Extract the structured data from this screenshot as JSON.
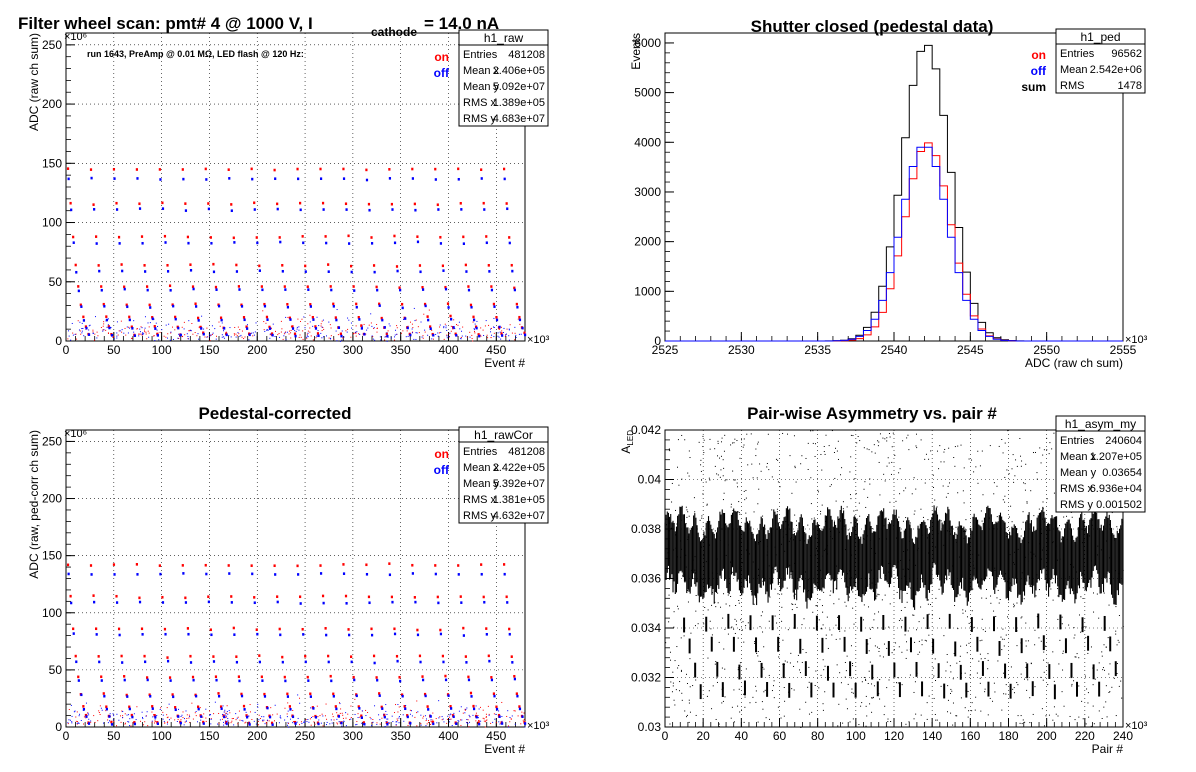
{
  "chart_data": [
    {
      "type": "scatter",
      "title_main": "Filter wheel scan: pmt#   4 @  1000 V, I",
      "title_sub": "cathode",
      "title_tail": "= 14.0 nA",
      "subtitle": "run 1643, PreAmp @ 0.01 MΩ, LED flash @  120 Hz:",
      "xlabel": "Event #",
      "ylabel": "ADC (raw ch sum)",
      "x_exponent": "×10³",
      "y_exponent": "×10⁶",
      "xlim": [
        0,
        480
      ],
      "ylim": [
        0,
        260
      ],
      "xticks": [
        0,
        50,
        100,
        150,
        200,
        250,
        300,
        350,
        400,
        450
      ],
      "yticks": [
        0,
        50,
        100,
        150,
        200,
        250
      ],
      "legend": [
        {
          "label": "on",
          "color": "#ff0000"
        },
        {
          "label": "off",
          "color": "#0000ff"
        }
      ],
      "stats": {
        "name": "h1_raw",
        "rows": [
          [
            "Entries",
            "481208"
          ],
          [
            "Mean x",
            "2.406e+05"
          ],
          [
            "Mean y",
            "5.092e+07"
          ],
          [
            "RMS x",
            "1.389e+05"
          ],
          [
            "RMS y",
            "4.683e+07"
          ]
        ]
      },
      "levels": {
        "on": [
          145,
          116,
          88,
          64,
          46,
          31,
          20,
          12,
          6
        ],
        "off": [
          137,
          111,
          83,
          59,
          43,
          29,
          18,
          11,
          5
        ]
      },
      "cycle_period": 24
    },
    {
      "type": "histogram",
      "title": "Shutter closed (pedestal data)",
      "xlabel": "ADC (raw ch sum)",
      "ylabel": "Events",
      "x_exponent": "×10³",
      "xlim": [
        2525,
        2555
      ],
      "ylim": [
        0,
        6200
      ],
      "xticks": [
        2525,
        2530,
        2535,
        2540,
        2545,
        2550,
        2555
      ],
      "yticks": [
        0,
        1000,
        2000,
        3000,
        4000,
        5000,
        6000,
        7000
      ],
      "ytick_labels": [
        "0",
        "1000",
        "2000",
        "3000",
        "4000",
        "5000",
        "6000",
        "7000"
      ],
      "legend": [
        {
          "label": "on",
          "color": "#ff0000"
        },
        {
          "label": "off",
          "color": "#0000ff"
        },
        {
          "label": "sum",
          "color": "#000000"
        }
      ],
      "stats": {
        "name": "h1_ped",
        "rows": [
          [
            "Entries",
            "96562"
          ],
          [
            "Mean",
            "2.542e+06"
          ],
          [
            "RMS",
            "1478"
          ]
        ]
      },
      "series": [
        {
          "name": "sum",
          "color": "#000000",
          "mean": 2542.1,
          "sigma": 1.55,
          "peak": 5980
        },
        {
          "name": "on",
          "color": "#ff0000",
          "mean": 2542.2,
          "sigma": 1.5,
          "peak": 3990
        },
        {
          "name": "off",
          "color": "#0000ff",
          "mean": 2542.0,
          "sigma": 1.55,
          "peak": 3950
        }
      ]
    },
    {
      "type": "scatter",
      "title": "Pedestal-corrected",
      "xlabel": "Event #",
      "ylabel": "ADC (raw, ped-corr ch sum)",
      "x_exponent": "×10³",
      "y_exponent": "×10⁶",
      "xlim": [
        0,
        480
      ],
      "ylim": [
        0,
        260
      ],
      "xticks": [
        0,
        50,
        100,
        150,
        200,
        250,
        300,
        350,
        400,
        450
      ],
      "yticks": [
        0,
        50,
        100,
        150,
        200,
        250
      ],
      "legend": [
        {
          "label": "on",
          "color": "#ff0000"
        },
        {
          "label": "off",
          "color": "#0000ff"
        }
      ],
      "stats": {
        "name": "h1_rawCor",
        "rows": [
          [
            "Entries",
            "481208"
          ],
          [
            "Mean x",
            "2.422e+05"
          ],
          [
            "Mean y",
            "5.392e+07"
          ],
          [
            "RMS x",
            "1.381e+05"
          ],
          [
            "RMS y",
            "4.632e+07"
          ]
        ]
      },
      "levels": {
        "on": [
          142,
          114,
          86,
          62,
          44,
          29,
          18,
          10,
          4
        ],
        "off": [
          134,
          109,
          81,
          57,
          41,
          27,
          16,
          9,
          3
        ]
      },
      "cycle_period": 24
    },
    {
      "type": "scatter",
      "title": "Pair-wise Asymmetry vs. pair #",
      "xlabel": "Pair #",
      "ylabel": "A",
      "ylabel_sub": "LED",
      "x_exponent": "×10³",
      "xlim": [
        0,
        240
      ],
      "ylim": [
        0.03,
        0.042
      ],
      "xticks": [
        0,
        20,
        40,
        60,
        80,
        100,
        120,
        140,
        160,
        180,
        200,
        220,
        240
      ],
      "yticks": [
        0.03,
        0.032,
        0.034,
        0.036,
        0.038,
        0.04,
        0.042
      ],
      "ytick_labels": [
        "0.03",
        "0.032",
        "0.034",
        "0.036",
        "0.038",
        "0.04",
        "0.042"
      ],
      "stats": {
        "name": "h1_asym_my",
        "rows": [
          [
            "Entries",
            "240604"
          ],
          [
            "Mean x",
            "1.207e+05"
          ],
          [
            "Mean y",
            "0.03654"
          ],
          [
            "RMS x",
            "6.936e+04"
          ],
          [
            "RMS y",
            "0.001502"
          ]
        ]
      },
      "band": {
        "center": 0.0372,
        "spread": 0.0008
      },
      "low_clusters": [
        0.0343,
        0.0334,
        0.0324,
        0.0316
      ]
    }
  ]
}
